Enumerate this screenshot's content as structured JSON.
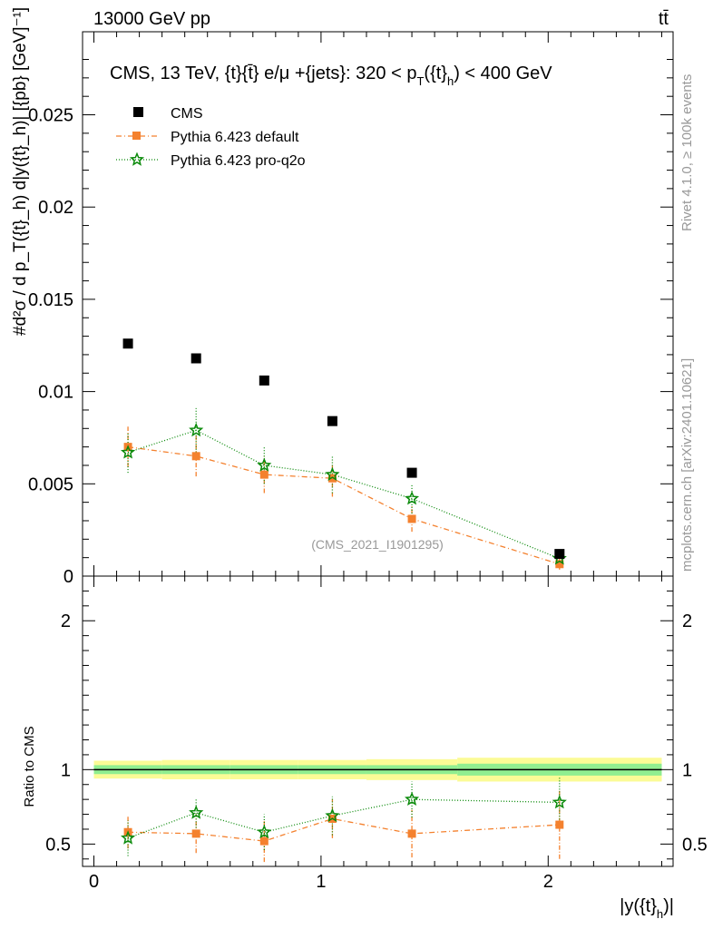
{
  "header": {
    "energy_label": "13000 GeV pp",
    "process_label": "tt̄"
  },
  "side_labels": {
    "rivet": "Rivet 4.1.0, ≥ 100k events",
    "mcplots": "mcplots.cern.ch [arXiv:2401.10621]"
  },
  "watermark": "(CMS_2021_I1901295)",
  "colors": {
    "cms": "#000000",
    "pythia_default": "#f4812e",
    "pythia_proq2o": "#0a8a0a",
    "band_inner": "#90ee90",
    "band_outer": "#fbfb96"
  },
  "chart_data": [
    {
      "type": "scatter",
      "title": "CMS, 13 TeV, {t}{t̄} e/μ +{jets}: 320 <  p_T({t}_h) < 400 GeV",
      "title_main": "CMS, 13 TeV, {t}{t̄} e/μ +{jets}: 320 <  p",
      "title_sub1": "T",
      "title_mid": "({t}",
      "title_sub2": "h",
      "title_end": ") < 400 GeV",
      "ylabel": "#d²σ / d p_T({t}_h) d|y({t}_h)| [{pb} [GeV]⁻¹]",
      "ylim": [
        0,
        0.0295
      ],
      "yticks": [
        "0",
        "0.005",
        "0.01",
        "0.015",
        "0.02",
        "0.025"
      ],
      "ytick_values": [
        0,
        0.005,
        0.01,
        0.015,
        0.02,
        0.025
      ],
      "series": [
        {
          "name": "CMS",
          "x": [
            0.15,
            0.45,
            0.75,
            1.05,
            1.4,
            2.05
          ],
          "y": [
            0.0126,
            0.0118,
            0.0106,
            0.0084,
            0.0056,
            0.0012
          ]
        },
        {
          "name": "Pythia 6.423 default",
          "x": [
            0.15,
            0.45,
            0.75,
            1.05,
            1.4,
            2.05
          ],
          "y": [
            0.007,
            0.0065,
            0.0055,
            0.0053,
            0.0031,
            0.00065
          ],
          "err": [
            0.0011,
            0.0011,
            0.001,
            0.001,
            0.0007,
            0.0003
          ]
        },
        {
          "name": "Pythia 6.423 pro-q2o",
          "x": [
            0.15,
            0.45,
            0.75,
            1.05,
            1.4,
            2.05
          ],
          "y": [
            0.0067,
            0.0079,
            0.006,
            0.0055,
            0.0042,
            0.00095
          ],
          "err": [
            0.0011,
            0.0012,
            0.001,
            0.001,
            0.0008,
            0.0003
          ]
        }
      ]
    },
    {
      "type": "scatter",
      "title": "Ratio to CMS",
      "xlabel": "|y({t}_h)|",
      "xlabel_main": "|y({t}",
      "xlabel_sub": "h",
      "xlabel_end": ")|",
      "ylabel": "Ratio to CMS",
      "xlim": [
        -0.05,
        2.55
      ],
      "ylim": [
        0.35,
        2.3
      ],
      "xticks": [
        "0",
        "1",
        "2"
      ],
      "xtick_values": [
        0,
        1,
        2
      ],
      "yticks": [
        "0.5",
        "1",
        "2"
      ],
      "ytick_values": [
        0.5,
        1,
        2
      ],
      "band_bins": [
        0,
        0.3,
        0.6,
        0.9,
        1.2,
        1.6,
        2.5
      ],
      "band_inner": [
        0.03,
        0.03,
        0.03,
        0.03,
        0.03,
        0.04
      ],
      "band_outer": [
        0.06,
        0.065,
        0.065,
        0.065,
        0.07,
        0.08
      ],
      "series": [
        {
          "name": "Pythia 6.423 default",
          "x": [
            0.15,
            0.45,
            0.75,
            1.05,
            1.4,
            2.05
          ],
          "y": [
            0.58,
            0.57,
            0.52,
            0.67,
            0.57,
            0.63
          ],
          "err": [
            0.11,
            0.13,
            0.14,
            0.13,
            0.16,
            0.23
          ]
        },
        {
          "name": "Pythia 6.423 pro-q2o",
          "x": [
            0.15,
            0.45,
            0.75,
            1.05,
            1.4,
            2.05
          ],
          "y": [
            0.54,
            0.71,
            0.58,
            0.69,
            0.8,
            0.78
          ],
          "err": [
            0.12,
            0.1,
            0.12,
            0.13,
            0.12,
            0.17
          ]
        }
      ]
    }
  ]
}
